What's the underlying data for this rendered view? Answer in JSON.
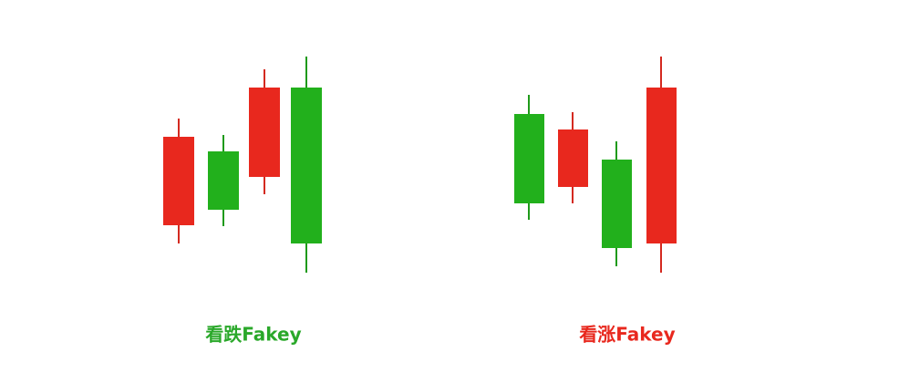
{
  "labels": {
    "bearish": "看跌Fakey",
    "bullish": "看涨Fakey"
  }
}
